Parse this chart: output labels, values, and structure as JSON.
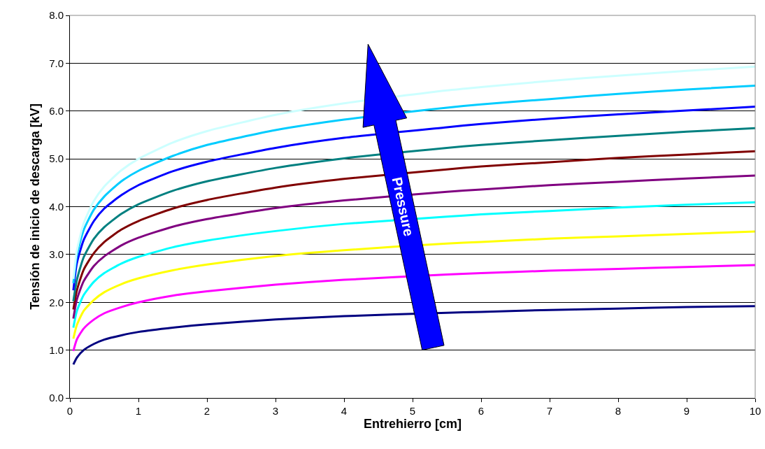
{
  "chart_data": {
    "type": "line",
    "xlabel": "Entrehierro [cm]",
    "ylabel": "Tensión de inicio de descarga [kV]",
    "x": [
      0.05,
      0.1,
      0.2,
      0.35,
      0.5,
      0.75,
      1,
      1.5,
      2,
      3,
      4,
      5.5,
      6,
      7,
      8,
      9,
      10
    ],
    "series": [
      {
        "color": "#000080",
        "values": [
          0.7,
          0.84,
          1.0,
          1.13,
          1.22,
          1.31,
          1.38,
          1.47,
          1.54,
          1.64,
          1.71,
          1.78,
          1.8,
          1.84,
          1.87,
          1.9,
          1.92
        ]
      },
      {
        "color": "#ff00ff",
        "values": [
          0.98,
          1.22,
          1.45,
          1.64,
          1.77,
          1.9,
          2.0,
          2.14,
          2.23,
          2.37,
          2.47,
          2.58,
          2.61,
          2.66,
          2.7,
          2.74,
          2.78
        ]
      },
      {
        "color": "#ffff00",
        "values": [
          1.24,
          1.52,
          1.82,
          2.05,
          2.21,
          2.38,
          2.5,
          2.67,
          2.79,
          2.97,
          3.09,
          3.23,
          3.26,
          3.33,
          3.38,
          3.43,
          3.48
        ]
      },
      {
        "color": "#00ffff",
        "values": [
          1.47,
          1.81,
          2.15,
          2.43,
          2.61,
          2.81,
          2.95,
          3.15,
          3.29,
          3.49,
          3.64,
          3.79,
          3.84,
          3.91,
          3.98,
          4.04,
          4.09
        ]
      },
      {
        "color": "#800080",
        "values": [
          1.66,
          2.05,
          2.44,
          2.76,
          2.96,
          3.19,
          3.35,
          3.58,
          3.74,
          3.97,
          4.13,
          4.31,
          4.36,
          4.45,
          4.52,
          4.59,
          4.65
        ]
      },
      {
        "color": "#800000",
        "values": [
          1.85,
          2.24,
          2.68,
          3.03,
          3.26,
          3.52,
          3.7,
          3.96,
          4.14,
          4.4,
          4.58,
          4.78,
          4.84,
          4.93,
          5.02,
          5.09,
          5.16
        ]
      },
      {
        "color": "#008080",
        "values": [
          2.02,
          2.46,
          2.94,
          3.33,
          3.57,
          3.85,
          4.05,
          4.33,
          4.53,
          4.81,
          5.01,
          5.23,
          5.29,
          5.39,
          5.48,
          5.57,
          5.64
        ]
      },
      {
        "color": "#0000ff",
        "values": [
          2.25,
          2.81,
          3.3,
          3.7,
          3.96,
          4.24,
          4.45,
          4.74,
          4.94,
          5.23,
          5.44,
          5.66,
          5.73,
          5.84,
          5.93,
          6.01,
          6.09
        ]
      },
      {
        "color": "#00ccff",
        "values": [
          2.4,
          2.97,
          3.51,
          3.94,
          4.21,
          4.53,
          4.75,
          5.06,
          5.29,
          5.6,
          5.82,
          6.07,
          6.14,
          6.25,
          6.36,
          6.45,
          6.53
        ]
      },
      {
        "color": "#ccffff",
        "values": [
          2.49,
          3.07,
          3.65,
          4.12,
          4.42,
          4.76,
          5.0,
          5.34,
          5.58,
          5.92,
          6.16,
          6.43,
          6.5,
          6.63,
          6.74,
          6.84,
          6.93
        ]
      }
    ],
    "xlim": [
      0,
      10
    ],
    "xticks": [
      0,
      1,
      2,
      3,
      4,
      5,
      6,
      7,
      8,
      9,
      10
    ],
    "ylim": [
      0,
      8
    ],
    "yticks": [
      {
        "value": 0,
        "label": "0.0"
      },
      {
        "value": 1,
        "label": "1.0"
      },
      {
        "value": 2,
        "label": "2.0"
      },
      {
        "value": 3,
        "label": "3.0"
      },
      {
        "value": 4,
        "label": "4.0"
      },
      {
        "value": 5,
        "label": "5.0"
      },
      {
        "value": 6,
        "label": "6.0"
      },
      {
        "value": 7,
        "label": "7.0"
      },
      {
        "value": 8,
        "label": "8.0"
      }
    ],
    "grid": "y",
    "legend": false,
    "marker": "none",
    "line_style": "solid",
    "annotations": [
      "Pressure"
    ]
  }
}
